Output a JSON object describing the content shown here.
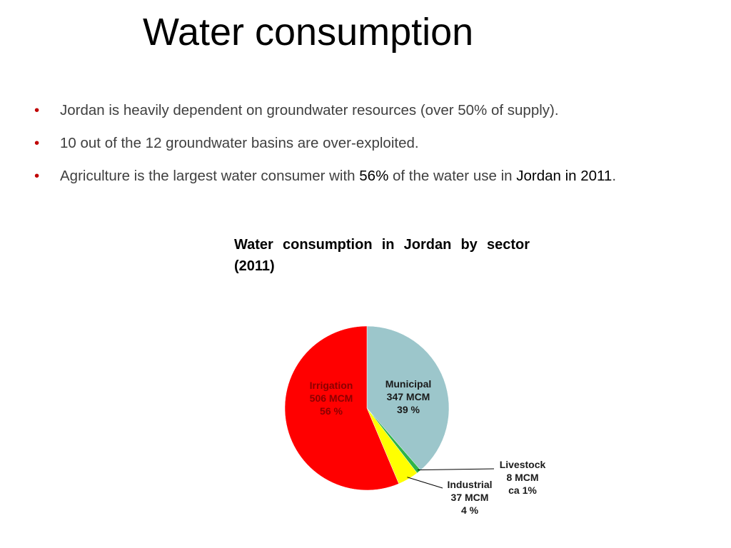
{
  "title": "Water consumption",
  "bullets": [
    [
      "Jordan is heavily dependent on groundwater resources (over 50% of supply)."
    ],
    [
      "10 out of the 12 groundwater basins are over-exploited."
    ],
    [
      "Agriculture is the largest water consumer with ",
      "56%",
      " of the water use in ",
      "Jordan in 2011",
      "."
    ]
  ],
  "chart_data": {
    "type": "pie",
    "title": "Water consumption in Jordan by sector (2011)",
    "categories": [
      "Municipal",
      "Livestock",
      "Industrial",
      "Irrigation"
    ],
    "values": [
      347,
      8,
      37,
      506
    ],
    "value_labels": [
      "347 MCM",
      "8 MCM",
      "37 MCM",
      "506 MCM"
    ],
    "percent_labels": [
      "39 %",
      "ca 1%",
      "4 %",
      "56 %"
    ],
    "colors": [
      "#9cc6cb",
      "#2fb34a",
      "#ffff00",
      "#ff0000"
    ]
  }
}
